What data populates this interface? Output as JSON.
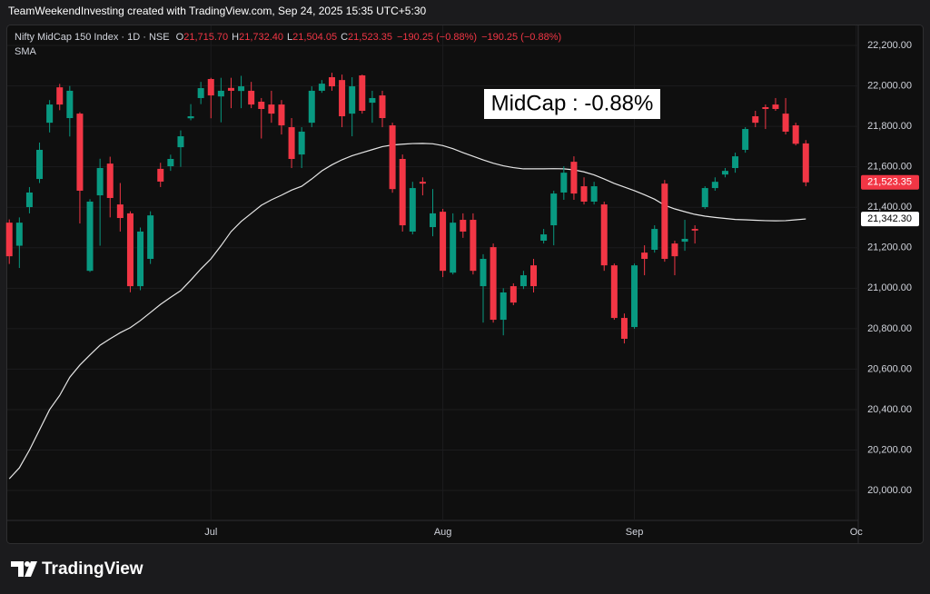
{
  "credit": "TeamWeekendInvesting created with TradingView.com, Sep 24, 2025 15:35 UTC+5:30",
  "brand": "TradingView",
  "chart_data": {
    "type": "candlestick",
    "title": "Nifty MidCap 150 Index · 1D · NSE",
    "legend_ohlc": [
      {
        "key": "O",
        "text": "21,715.70"
      },
      {
        "key": "H",
        "text": "21,732.40"
      },
      {
        "key": "L",
        "text": "21,504.05"
      },
      {
        "key": "C",
        "text": "21,523.35"
      }
    ],
    "changes": [
      "−190.25 (−0.88%)",
      "−190.25 (−0.88%)"
    ],
    "annotation": "MidCap : -0.88%",
    "up_color": "#089981",
    "down_color": "#f23645",
    "grid": true,
    "xlim": [
      -0.2,
      84.2
    ],
    "xticks": [
      {
        "value": 20,
        "label": "Jul"
      },
      {
        "value": 43,
        "label": "Aug"
      },
      {
        "value": 62,
        "label": "Sep"
      },
      {
        "value": 84,
        "label": "Oc"
      }
    ],
    "ylim": [
      19852,
      22299
    ],
    "yticks": [
      {
        "value": 20000,
        "label": "20,000.00"
      },
      {
        "value": 20200,
        "label": "20,200.00"
      },
      {
        "value": 20400,
        "label": "20,400.00"
      },
      {
        "value": 20600,
        "label": "20,600.00"
      },
      {
        "value": 20800,
        "label": "20,800.00"
      },
      {
        "value": 21000,
        "label": "21,000.00"
      },
      {
        "value": 21200,
        "label": "21,200.00"
      },
      {
        "value": 21400,
        "label": "21,400.00"
      },
      {
        "value": 21600,
        "label": "21,600.00"
      },
      {
        "value": 21800,
        "label": "21,800.00"
      },
      {
        "value": 22000,
        "label": "22,000.00"
      },
      {
        "value": 22200,
        "label": "22,200.00"
      }
    ],
    "open": [
      21324,
      21210,
      21401,
      21540,
      21818,
      21993,
      21841,
      21863,
      21086,
      21459,
      21616,
      21414,
      21370,
      21010,
      21145,
      21590,
      21603,
      21697,
      21840,
      21940,
      22034,
      21948,
      21990,
      21975,
      21976,
      21922,
      21908,
      21908,
      21796,
      21661,
      21818,
      21976,
      22043,
      22029,
      21863,
      22052,
      21917,
      21953,
      21805,
      21639,
      21280,
      21526,
      21302,
      21378,
      21077,
      21338,
      21338,
      21010,
      21203,
      20844,
      21010,
      21010,
      21113,
      21235,
      21311,
      21473,
      21625,
      21504,
      21428,
      21414,
      21113,
      20853,
      20808,
      21176,
      21190,
      21517,
      21221,
      21230,
      21293,
      21401,
      21495,
      21562,
      21594,
      21684,
      21850,
      21895,
      21908,
      21863,
      21805,
      21715.7
    ],
    "high": [
      21340,
      21350,
      21500,
      21720,
      21930,
      22010,
      22000,
      21870,
      21440,
      21640,
      21650,
      21520,
      21380,
      21300,
      21380,
      21620,
      21660,
      21780,
      21910,
      22020,
      22040,
      22040,
      22040,
      22050,
      22020,
      21940,
      21976,
      21930,
      21841,
      21796,
      21998,
      22029,
      22065,
      22056,
      22043,
      22056,
      21976,
      21976,
      21818,
      21661,
      21526,
      21548,
      21490,
      21392,
      21370,
      21370,
      21370,
      21168,
      21221,
      21000,
      21024,
      21086,
      21145,
      21293,
      21482,
      21603,
      21652,
      21548,
      21526,
      21428,
      21122,
      20875,
      21122,
      21212,
      21311,
      21535,
      21235,
      21338,
      21311,
      21504,
      21548,
      21594,
      21670,
      21796,
      21877,
      21908,
      21940,
      21940,
      21818,
      21732.4
    ],
    "low": [
      21120,
      21100,
      21370,
      21520,
      21770,
      21880,
      21750,
      21320,
      21080,
      21210,
      21350,
      21280,
      20980,
      20990,
      21120,
      21500,
      21580,
      21600,
      21830,
      21910,
      21840,
      21820,
      21890,
      21890,
      21890,
      21740,
      21818,
      21760,
      21594,
      21594,
      21796,
      21966,
      21976,
      21796,
      21751,
      21863,
      21818,
      21796,
      21472,
      21280,
      21266,
      21459,
      21257,
      21055,
      21068,
      21249,
      21068,
      20830,
      20830,
      20767,
      20916,
      20996,
      20979,
      21221,
      21212,
      21437,
      21437,
      21414,
      21414,
      21086,
      20844,
      20727,
      20799,
      21064,
      21176,
      21131,
      21064,
      21185,
      21221,
      21392,
      21482,
      21548,
      21571,
      21670,
      21796,
      21787,
      21877,
      21760,
      21706,
      21504.05
    ],
    "close": [
      21158,
      21324,
      21473,
      21684,
      21908,
      21908,
      21976,
      21482,
      21428,
      21594,
      21446,
      21347,
      21010,
      21280,
      21360,
      21527,
      21639,
      21751,
      21850,
      21989,
      21953,
      21976,
      21976,
      21998,
      21908,
      21886,
      21863,
      21805,
      21639,
      21774,
      21976,
      22011,
      21998,
      21850,
      21998,
      21877,
      21940,
      21841,
      21490,
      21311,
      21495,
      21517,
      21370,
      21086,
      21324,
      21280,
      21086,
      21145,
      20844,
      20979,
      20929,
      21064,
      21010,
      21266,
      21468,
      21571,
      21468,
      21428,
      21504,
      21113,
      20853,
      20750,
      21113,
      21145,
      21293,
      21145,
      21158,
      21244,
      21285,
      21495,
      21526,
      21580,
      21652,
      21787,
      21818,
      21886,
      21886,
      21774,
      21714,
      21523.35
    ],
    "overlays": [
      {
        "name": "SMA",
        "color": "#e6e6e6",
        "values": [
          20058,
          20112,
          20200,
          20300,
          20400,
          20470,
          20560,
          20620,
          20670,
          20718,
          20750,
          20780,
          20805,
          20840,
          20880,
          20920,
          20955,
          20988,
          21040,
          21095,
          21145,
          21210,
          21280,
          21330,
          21370,
          21410,
          21437,
          21460,
          21485,
          21504,
          21540,
          21580,
          21610,
          21635,
          21655,
          21670,
          21685,
          21700,
          21708,
          21712,
          21715,
          21716,
          21714,
          21705,
          21690,
          21670,
          21652,
          21634,
          21618,
          21605,
          21596,
          21590,
          21590,
          21590,
          21591,
          21590,
          21585,
          21575,
          21560,
          21540,
          21518,
          21500,
          21482,
          21462,
          21440,
          21410,
          21392,
          21378,
          21365,
          21356,
          21350,
          21345,
          21340,
          21338,
          21336,
          21334,
          21333,
          21334,
          21338,
          21342.3
        ]
      }
    ],
    "price_markers": [
      {
        "value": 21523.35,
        "label": "21,523.35",
        "color": "#f23645",
        "text_color": "#ffffff"
      },
      {
        "value": 21342.3,
        "label": "21,342.30",
        "color": "#ffffff",
        "text_color": "#000000"
      }
    ]
  }
}
